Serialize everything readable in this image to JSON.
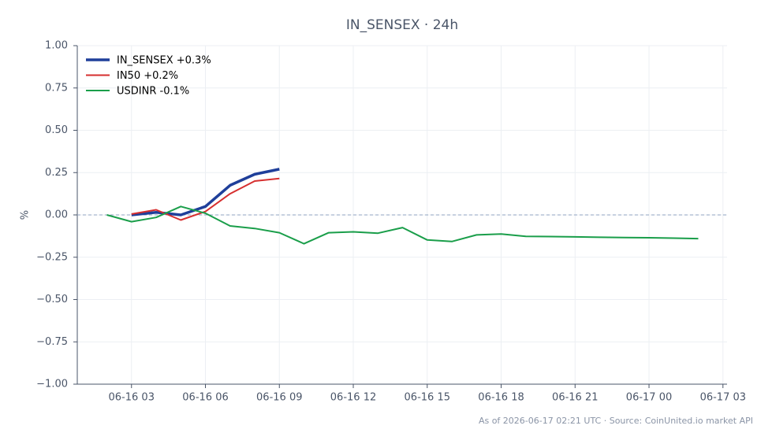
{
  "chart_data": {
    "type": "line",
    "title": "IN_SENSEX · 24h",
    "ylabel": "%",
    "footer": "As of 2026-06-17 02:21 UTC · Source: CoinUnited.io market API",
    "xlim": [
      "06-16 00:48",
      "06-17 03:10"
    ],
    "xticks": [
      "06-16 03",
      "06-16 06",
      "06-16 09",
      "06-16 12",
      "06-16 15",
      "06-16 18",
      "06-16 21",
      "06-17 00",
      "06-17 03"
    ],
    "ylim": [
      -1,
      1
    ],
    "yticks": [
      {
        "value": -1,
        "label": "−1.00"
      },
      {
        "value": -0.75,
        "label": "−0.75"
      },
      {
        "value": -0.5,
        "label": "−0.50"
      },
      {
        "value": -0.25,
        "label": "−0.25"
      },
      {
        "value": 0,
        "label": "0.00"
      },
      {
        "value": 0.25,
        "label": "0.25"
      },
      {
        "value": 0.5,
        "label": "0.50"
      },
      {
        "value": 0.75,
        "label": "0.75"
      },
      {
        "value": 1,
        "label": "1.00"
      }
    ],
    "grid": true,
    "reference_line": 0,
    "legend": "upper left",
    "series": [
      {
        "name": "IN_SENSEX +0.3%",
        "color": "#1f3f9a",
        "width": 3.5,
        "x": [
          "06-16 03",
          "06-16 04",
          "06-16 05",
          "06-16 06",
          "06-16 07",
          "06-16 08",
          "06-16 09"
        ],
        "values": [
          0.0,
          0.015,
          0.0,
          0.05,
          0.175,
          0.24,
          0.27
        ]
      },
      {
        "name": "IN50 +0.2%",
        "color": "#d62f2f",
        "width": 2,
        "x": [
          "06-16 03",
          "06-16 04",
          "06-16 05",
          "06-16 06",
          "06-16 07",
          "06-16 08",
          "06-16 09"
        ],
        "values": [
          0.005,
          0.03,
          -0.03,
          0.02,
          0.125,
          0.2,
          0.215
        ]
      },
      {
        "name": "USDINR -0.1%",
        "color": "#1a9e4a",
        "width": 2,
        "x": [
          "06-16 02",
          "06-16 03",
          "06-16 04",
          "06-16 05",
          "06-16 06",
          "06-16 07",
          "06-16 08",
          "06-16 09",
          "06-16 10",
          "06-16 11",
          "06-16 12",
          "06-16 13",
          "06-16 14",
          "06-16 15",
          "06-16 16",
          "06-16 17",
          "06-16 18",
          "06-16 19",
          "06-16 20",
          "06-16 21",
          "06-16 22",
          "06-16 23",
          "06-17 00",
          "06-17 01",
          "06-17 02"
        ],
        "values": [
          0.0,
          -0.04,
          -0.015,
          0.05,
          0.01,
          -0.065,
          -0.08,
          -0.105,
          -0.17,
          -0.105,
          -0.1,
          -0.108,
          -0.075,
          -0.148,
          -0.157,
          -0.118,
          -0.113,
          -0.127,
          -0.128,
          -0.13,
          -0.132,
          -0.134,
          -0.135,
          -0.137,
          -0.14
        ]
      }
    ]
  }
}
